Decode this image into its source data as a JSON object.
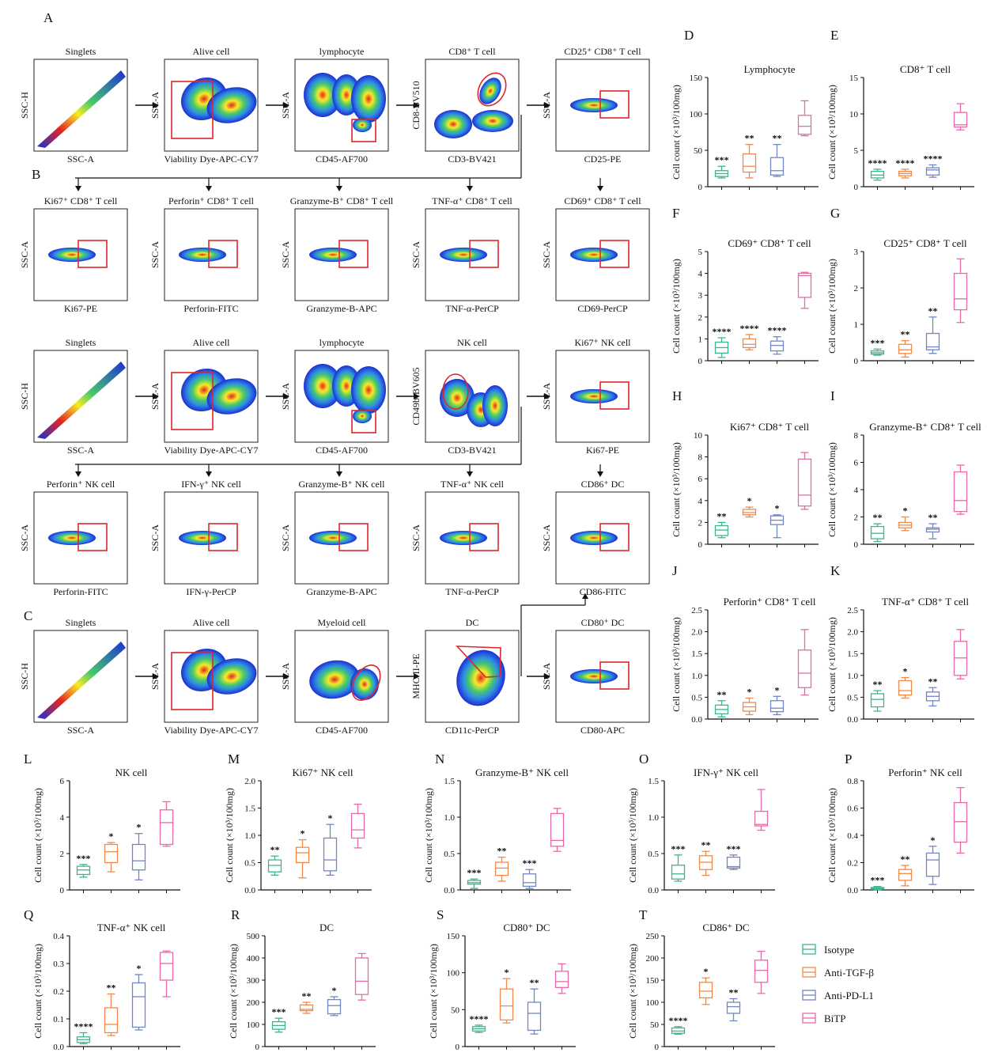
{
  "colors": {
    "Isotype": "#3cb68a",
    "Anti-TGF-β": "#f08a4b",
    "Anti-PD-L1": "#7187c4",
    "BiTP": "#e66aa8",
    "gate": "#e0262b"
  },
  "flow": {
    "panel_labels": [
      "A",
      "B",
      "C"
    ],
    "row1": [
      {
        "title": "Singlets",
        "xlab": "SSC-A",
        "ylab": "SSC-H",
        "type": "diag"
      },
      {
        "title": "Alive cell",
        "xlab": "Viability Dye-APC-CY7",
        "ylab": "SSC-A",
        "type": "alive"
      },
      {
        "title": "lymphocyte",
        "xlab": "CD45-AF700",
        "ylab": "SSC-A",
        "type": "lymph"
      },
      {
        "title": "CD8⁺ T cell",
        "xlab": "CD3-BV421",
        "ylab": "CD8-BV510",
        "type": "cd8"
      },
      {
        "title": "CD25⁺ CD8⁺ T cell",
        "xlab": "CD25-PE",
        "ylab": "SSC-A",
        "type": "gate"
      }
    ],
    "row2": [
      {
        "title": "Ki67⁺ CD8⁺ T cell",
        "xlab": "Ki67-PE",
        "ylab": "SSC-A",
        "type": "gate"
      },
      {
        "title": "Perforin⁺ CD8⁺ T cell",
        "xlab": "Perforin-FITC",
        "ylab": "SSC-A",
        "type": "gate"
      },
      {
        "title": "Granzyme-B⁺ CD8⁺ T cell",
        "xlab": "Granzyme-B-APC",
        "ylab": "SSC-A",
        "type": "gate"
      },
      {
        "title": "TNF-α⁺ CD8⁺ T cell",
        "xlab": "TNF-α-PerCP",
        "ylab": "SSC-A",
        "type": "gate"
      },
      {
        "title": "CD69⁺ CD8⁺ T cell",
        "xlab": "CD69-PerCP",
        "ylab": "SSC-A",
        "type": "gate"
      }
    ],
    "row3": [
      {
        "title": "Singlets",
        "xlab": "SSC-A",
        "ylab": "SSC-H",
        "type": "diag"
      },
      {
        "title": "Alive cell",
        "xlab": "Viability Dye-APC-CY7",
        "ylab": "SSC-A",
        "type": "alive"
      },
      {
        "title": "lymphocyte",
        "xlab": "CD45-AF700",
        "ylab": "SSC-A",
        "type": "lymph"
      },
      {
        "title": "NK cell",
        "xlab": "CD3-BV421",
        "ylab": "CD49b-BV605",
        "type": "nk"
      },
      {
        "title": "Ki67⁺ NK cell",
        "xlab": "Ki67-PE",
        "ylab": "SSC-A",
        "type": "gate"
      }
    ],
    "row4": [
      {
        "title": "Perforin⁺ NK cell",
        "xlab": "Perforin-FITC",
        "ylab": "SSC-A",
        "type": "gate"
      },
      {
        "title": "IFN-γ⁺ NK cell",
        "xlab": "IFN-γ-PerCP",
        "ylab": "SSC-A",
        "type": "gate"
      },
      {
        "title": "Granzyme-B⁺ NK cell",
        "xlab": "Granzyme-B-APC",
        "ylab": "SSC-A",
        "type": "gate"
      },
      {
        "title": "TNF-α⁺ NK cell",
        "xlab": "TNF-α-PerCP",
        "ylab": "SSC-A",
        "type": "gate"
      },
      {
        "title": "CD86⁺ DC",
        "xlab": "CD86-FITC",
        "ylab": "SSC-A",
        "type": "gate"
      }
    ],
    "row5": [
      {
        "title": "Singlets",
        "xlab": "SSC-A",
        "ylab": "SSC-H",
        "type": "diag"
      },
      {
        "title": "Alive cell",
        "xlab": "Viability Dye-APC-CY7",
        "ylab": "SSC-A",
        "type": "alive"
      },
      {
        "title": "Myeloid cell",
        "xlab": "CD45-AF700",
        "ylab": "SSC-A",
        "type": "myeloid"
      },
      {
        "title": "DC",
        "xlab": "CD11c-PerCP",
        "ylab": "MHC-II-PE",
        "type": "dc"
      },
      {
        "title": "CD80⁺ DC",
        "xlab": "CD80-APC",
        "ylab": "SSC-A",
        "type": "gate"
      }
    ]
  },
  "chart_data": [
    {
      "label": "D",
      "type": "box",
      "title": "Lymphocyte",
      "ylabel": "Cell count (×10³/100mg)",
      "ylim": [
        0,
        150
      ],
      "ticks": [
        0,
        50,
        100,
        150
      ],
      "groups": [
        {
          "min": 12,
          "q1": 14,
          "med": 18,
          "q3": 22,
          "max": 28,
          "sig": "***"
        },
        {
          "min": 12,
          "q1": 20,
          "med": 28,
          "q3": 45,
          "max": 58,
          "sig": "**"
        },
        {
          "min": 14,
          "q1": 16,
          "med": 22,
          "q3": 40,
          "max": 58,
          "sig": "**"
        },
        {
          "min": 70,
          "q1": 72,
          "med": 83,
          "q3": 98,
          "max": 118,
          "sig": ""
        }
      ]
    },
    {
      "label": "E",
      "type": "box",
      "title": "CD8⁺ T cell",
      "ylabel": "Cell count (×10³/100mg)",
      "ylim": [
        0,
        15
      ],
      "ticks": [
        0,
        5,
        10,
        15
      ],
      "groups": [
        {
          "min": 0.9,
          "q1": 1.2,
          "med": 1.6,
          "q3": 2.1,
          "max": 2.4,
          "sig": "****"
        },
        {
          "min": 1.2,
          "q1": 1.5,
          "med": 1.8,
          "q3": 2.1,
          "max": 2.4,
          "sig": "****"
        },
        {
          "min": 1.3,
          "q1": 1.6,
          "med": 2.3,
          "q3": 2.6,
          "max": 3.0,
          "sig": "****"
        },
        {
          "min": 7.8,
          "q1": 8.2,
          "med": 8.5,
          "q3": 10.2,
          "max": 11.4,
          "sig": ""
        }
      ]
    },
    {
      "label": "F",
      "type": "box",
      "title": "CD69⁺ CD8⁺ T cell",
      "ylabel": "Cell count (×10³/100mg)",
      "ylim": [
        0,
        5
      ],
      "ticks": [
        0,
        1,
        2,
        3,
        4,
        5
      ],
      "groups": [
        {
          "min": 0.15,
          "q1": 0.35,
          "med": 0.6,
          "q3": 0.85,
          "max": 1.05,
          "sig": "****"
        },
        {
          "min": 0.5,
          "q1": 0.6,
          "med": 0.75,
          "q3": 1.0,
          "max": 1.2,
          "sig": "****"
        },
        {
          "min": 0.3,
          "q1": 0.45,
          "med": 0.7,
          "q3": 0.9,
          "max": 1.1,
          "sig": "****"
        },
        {
          "min": 2.4,
          "q1": 2.9,
          "med": 3.9,
          "q3": 4.0,
          "max": 4.05,
          "sig": ""
        }
      ]
    },
    {
      "label": "G",
      "type": "box",
      "title": "CD25⁺ CD8⁺ T cell",
      "ylabel": "Cell count (×10³/100mg)",
      "ylim": [
        0,
        3
      ],
      "ticks": [
        0,
        1,
        2,
        3
      ],
      "groups": [
        {
          "min": 0.15,
          "q1": 0.18,
          "med": 0.22,
          "q3": 0.27,
          "max": 0.32,
          "sig": "***"
        },
        {
          "min": 0.1,
          "q1": 0.2,
          "med": 0.3,
          "q3": 0.45,
          "max": 0.55,
          "sig": "**"
        },
        {
          "min": 0.2,
          "q1": 0.3,
          "med": 0.38,
          "q3": 0.75,
          "max": 1.2,
          "sig": "**"
        },
        {
          "min": 1.05,
          "q1": 1.4,
          "med": 1.7,
          "q3": 2.4,
          "max": 2.8,
          "sig": ""
        }
      ]
    },
    {
      "label": "H",
      "type": "box",
      "title": "Ki67⁺ CD8⁺ T cell",
      "ylabel": "Cell count (×10³/100mg)",
      "ylim": [
        0,
        10
      ],
      "ticks": [
        0,
        2,
        4,
        6,
        8,
        10
      ],
      "groups": [
        {
          "min": 0.6,
          "q1": 0.8,
          "med": 1.3,
          "q3": 1.7,
          "max": 2.0,
          "sig": "**"
        },
        {
          "min": 2.5,
          "q1": 2.7,
          "med": 2.9,
          "q3": 3.2,
          "max": 3.4,
          "sig": "*"
        },
        {
          "min": 0.6,
          "q1": 1.8,
          "med": 2.2,
          "q3": 2.6,
          "max": 2.7,
          "sig": "*"
        },
        {
          "min": 3.2,
          "q1": 3.5,
          "med": 4.5,
          "q3": 7.8,
          "max": 8.4,
          "sig": ""
        }
      ]
    },
    {
      "label": "I",
      "type": "box",
      "title": "Granzyme-B⁺ CD8⁺ T cell",
      "ylabel": "Cell count (×10³/100mg)",
      "ylim": [
        0,
        8
      ],
      "ticks": [
        0,
        2,
        4,
        6,
        8
      ],
      "groups": [
        {
          "min": 0.2,
          "q1": 0.4,
          "med": 0.8,
          "q3": 1.3,
          "max": 1.5,
          "sig": "**"
        },
        {
          "min": 1.0,
          "q1": 1.2,
          "med": 1.4,
          "q3": 1.6,
          "max": 2.0,
          "sig": "*"
        },
        {
          "min": 0.4,
          "q1": 0.9,
          "med": 1.1,
          "q3": 1.2,
          "max": 1.5,
          "sig": "**"
        },
        {
          "min": 2.2,
          "q1": 2.4,
          "med": 3.2,
          "q3": 5.3,
          "max": 5.8,
          "sig": ""
        }
      ]
    },
    {
      "label": "J",
      "type": "box",
      "title": "Perforin⁺ CD8⁺ T cell",
      "ylabel": "Cell count (×10³/100mg)",
      "ylim": [
        0,
        2.5
      ],
      "ticks": [
        0,
        0.5,
        1,
        1.5,
        2,
        2.5
      ],
      "tickLabels": [
        "0.0",
        "0.5",
        "1.0",
        "1.5",
        "2.0",
        "2.5"
      ],
      "groups": [
        {
          "min": 0.05,
          "q1": 0.12,
          "med": 0.22,
          "q3": 0.32,
          "max": 0.42,
          "sig": "**"
        },
        {
          "min": 0.1,
          "q1": 0.18,
          "med": 0.28,
          "q3": 0.38,
          "max": 0.48,
          "sig": "*"
        },
        {
          "min": 0.1,
          "q1": 0.17,
          "med": 0.25,
          "q3": 0.42,
          "max": 0.52,
          "sig": "*"
        },
        {
          "min": 0.55,
          "q1": 0.72,
          "med": 1.05,
          "q3": 1.58,
          "max": 2.05,
          "sig": ""
        }
      ]
    },
    {
      "label": "K",
      "type": "box",
      "title": "TNF-α⁺ CD8⁺ T cell",
      "ylabel": "Cell count (×10³/100mg)",
      "ylim": [
        0,
        2.5
      ],
      "ticks": [
        0,
        0.5,
        1,
        1.5,
        2,
        2.5
      ],
      "tickLabels": [
        "0.0",
        "0.5",
        "1.0",
        "1.5",
        "2.0",
        "2.5"
      ],
      "groups": [
        {
          "min": 0.18,
          "q1": 0.28,
          "med": 0.45,
          "q3": 0.58,
          "max": 0.65,
          "sig": "**"
        },
        {
          "min": 0.48,
          "q1": 0.55,
          "med": 0.65,
          "q3": 0.88,
          "max": 0.95,
          "sig": "*"
        },
        {
          "min": 0.3,
          "q1": 0.42,
          "med": 0.52,
          "q3": 0.62,
          "max": 0.72,
          "sig": "**"
        },
        {
          "min": 0.92,
          "q1": 1.0,
          "med": 1.4,
          "q3": 1.78,
          "max": 2.05,
          "sig": ""
        }
      ]
    },
    {
      "label": "L",
      "type": "box",
      "title": "NK cell",
      "ylabel": "Cell count (×10³/100mg)",
      "ylim": [
        0,
        6
      ],
      "ticks": [
        0,
        2,
        4,
        6
      ],
      "groups": [
        {
          "min": 0.7,
          "q1": 0.85,
          "med": 1.1,
          "q3": 1.3,
          "max": 1.4,
          "sig": "***"
        },
        {
          "min": 1.0,
          "q1": 1.5,
          "med": 2.1,
          "q3": 2.5,
          "max": 2.6,
          "sig": "*"
        },
        {
          "min": 0.55,
          "q1": 1.1,
          "med": 1.6,
          "q3": 2.5,
          "max": 3.1,
          "sig": "*"
        },
        {
          "min": 2.4,
          "q1": 2.5,
          "med": 3.7,
          "q3": 4.4,
          "max": 4.85,
          "sig": ""
        }
      ]
    },
    {
      "label": "M",
      "type": "box",
      "title": "Ki67⁺ NK cell",
      "ylabel": "Cell count (×10³/100mg)",
      "ylim": [
        0,
        2.0
      ],
      "ticks": [
        0,
        0.5,
        1,
        1.5,
        2
      ],
      "tickLabels": [
        "0.0",
        "0.5",
        "1.0",
        "1.5",
        "2.0"
      ],
      "groups": [
        {
          "min": 0.27,
          "q1": 0.33,
          "med": 0.45,
          "q3": 0.55,
          "max": 0.62,
          "sig": "**"
        },
        {
          "min": 0.22,
          "q1": 0.5,
          "med": 0.68,
          "q3": 0.78,
          "max": 0.92,
          "sig": "*"
        },
        {
          "min": 0.27,
          "q1": 0.35,
          "med": 0.55,
          "q3": 0.95,
          "max": 1.2,
          "sig": "*"
        },
        {
          "min": 0.77,
          "q1": 0.95,
          "med": 1.1,
          "q3": 1.4,
          "max": 1.57,
          "sig": ""
        }
      ]
    },
    {
      "label": "N",
      "type": "box",
      "title": "Granzyme-B⁺ NK cell",
      "ylabel": "Cell count (×10³/100mg)",
      "ylim": [
        0,
        1.5
      ],
      "ticks": [
        0,
        0.5,
        1,
        1.5
      ],
      "tickLabels": [
        "0.0",
        "0.5",
        "1.0",
        "1.5"
      ],
      "groups": [
        {
          "min": 0.02,
          "q1": 0.08,
          "med": 0.1,
          "q3": 0.13,
          "max": 0.15,
          "sig": "***"
        },
        {
          "min": 0.12,
          "q1": 0.2,
          "med": 0.3,
          "q3": 0.38,
          "max": 0.45,
          "sig": "**"
        },
        {
          "min": 0.02,
          "q1": 0.05,
          "med": 0.1,
          "q3": 0.22,
          "max": 0.28,
          "sig": "***"
        },
        {
          "min": 0.53,
          "q1": 0.6,
          "med": 0.68,
          "q3": 1.05,
          "max": 1.12,
          "sig": ""
        }
      ]
    },
    {
      "label": "O",
      "type": "box",
      "title": "IFN-γ⁺ NK cell",
      "ylabel": "Cell count (×10³/100mg)",
      "ylim": [
        0,
        1.5
      ],
      "ticks": [
        0,
        0.5,
        1,
        1.5
      ],
      "tickLabels": [
        "0.0",
        "0.5",
        "1.0",
        "1.5"
      ],
      "groups": [
        {
          "min": 0.12,
          "q1": 0.15,
          "med": 0.22,
          "q3": 0.34,
          "max": 0.48,
          "sig": "***"
        },
        {
          "min": 0.2,
          "q1": 0.28,
          "med": 0.38,
          "q3": 0.47,
          "max": 0.53,
          "sig": "**"
        },
        {
          "min": 0.28,
          "q1": 0.3,
          "med": 0.32,
          "q3": 0.45,
          "max": 0.48,
          "sig": "***"
        },
        {
          "min": 0.82,
          "q1": 0.88,
          "med": 0.9,
          "q3": 1.08,
          "max": 1.38,
          "sig": ""
        }
      ]
    },
    {
      "label": "P",
      "type": "box",
      "title": "Perforin⁺ NK cell",
      "ylabel": "Cell count (×10³/100mg)",
      "ylim": [
        0,
        0.8
      ],
      "ticks": [
        0,
        0.2,
        0.4,
        0.6,
        0.8
      ],
      "tickLabels": [
        "0.0",
        "0.2",
        "0.4",
        "0.6",
        "0.8"
      ],
      "groups": [
        {
          "min": 0.0,
          "q1": 0.005,
          "med": 0.01,
          "q3": 0.018,
          "max": 0.025,
          "sig": "***"
        },
        {
          "min": 0.03,
          "q1": 0.07,
          "med": 0.12,
          "q3": 0.15,
          "max": 0.18,
          "sig": "**"
        },
        {
          "min": 0.04,
          "q1": 0.1,
          "med": 0.22,
          "q3": 0.27,
          "max": 0.32,
          "sig": "*"
        },
        {
          "min": 0.27,
          "q1": 0.35,
          "med": 0.5,
          "q3": 0.64,
          "max": 0.75,
          "sig": ""
        }
      ]
    },
    {
      "label": "Q",
      "type": "box",
      "title": "TNF-α⁺ NK cell",
      "ylabel": "Cell count (×10³/100mg)",
      "ylim": [
        0,
        0.4
      ],
      "ticks": [
        0,
        0.1,
        0.2,
        0.3,
        0.4
      ],
      "tickLabels": [
        "0.0",
        "0.1",
        "0.2",
        "0.3",
        "0.4"
      ],
      "groups": [
        {
          "min": 0.01,
          "q1": 0.015,
          "med": 0.025,
          "q3": 0.035,
          "max": 0.05,
          "sig": "****"
        },
        {
          "min": 0.04,
          "q1": 0.05,
          "med": 0.08,
          "q3": 0.14,
          "max": 0.19,
          "sig": "**"
        },
        {
          "min": 0.06,
          "q1": 0.07,
          "med": 0.18,
          "q3": 0.23,
          "max": 0.26,
          "sig": "*"
        },
        {
          "min": 0.18,
          "q1": 0.24,
          "med": 0.3,
          "q3": 0.34,
          "max": 0.345,
          "sig": ""
        }
      ]
    },
    {
      "label": "R",
      "type": "box",
      "title": "DC",
      "ylabel": "Cell count (×10³/100mg)",
      "ylim": [
        0,
        500
      ],
      "ticks": [
        0,
        100,
        200,
        300,
        400,
        500
      ],
      "groups": [
        {
          "min": 65,
          "q1": 78,
          "med": 95,
          "q3": 112,
          "max": 128,
          "sig": "***"
        },
        {
          "min": 150,
          "q1": 162,
          "med": 168,
          "q3": 188,
          "max": 200,
          "sig": "**"
        },
        {
          "min": 140,
          "q1": 148,
          "med": 185,
          "q3": 212,
          "max": 225,
          "sig": "*"
        },
        {
          "min": 210,
          "q1": 235,
          "med": 295,
          "q3": 400,
          "max": 420,
          "sig": ""
        }
      ]
    },
    {
      "label": "S",
      "type": "box",
      "title": "CD80⁺ DC",
      "ylabel": "Cell count (×10³/100mg)",
      "ylim": [
        0,
        150
      ],
      "ticks": [
        0,
        50,
        100,
        150
      ],
      "groups": [
        {
          "min": 19,
          "q1": 21,
          "med": 24,
          "q3": 27,
          "max": 29,
          "sig": "****"
        },
        {
          "min": 32,
          "q1": 36,
          "med": 55,
          "q3": 78,
          "max": 92,
          "sig": "*"
        },
        {
          "min": 17,
          "q1": 22,
          "med": 45,
          "q3": 60,
          "max": 78,
          "sig": "**"
        },
        {
          "min": 72,
          "q1": 80,
          "med": 88,
          "q3": 102,
          "max": 112,
          "sig": ""
        }
      ]
    },
    {
      "label": "T",
      "type": "box",
      "title": "CD86⁺ DC",
      "ylabel": "Cell count (×10³/100mg)",
      "ylim": [
        0,
        250
      ],
      "ticks": [
        0,
        50,
        100,
        150,
        200,
        250
      ],
      "groups": [
        {
          "min": 28,
          "q1": 30,
          "med": 35,
          "q3": 42,
          "max": 45,
          "sig": "****"
        },
        {
          "min": 95,
          "q1": 110,
          "med": 125,
          "q3": 145,
          "max": 155,
          "sig": "*"
        },
        {
          "min": 58,
          "q1": 75,
          "med": 90,
          "q3": 100,
          "max": 108,
          "sig": "**"
        },
        {
          "min": 120,
          "q1": 145,
          "med": 172,
          "q3": 195,
          "max": 215,
          "sig": ""
        }
      ]
    }
  ],
  "legend": [
    "Isotype",
    "Anti-TGF-β",
    "Anti-PD-L1",
    "BiTP"
  ]
}
